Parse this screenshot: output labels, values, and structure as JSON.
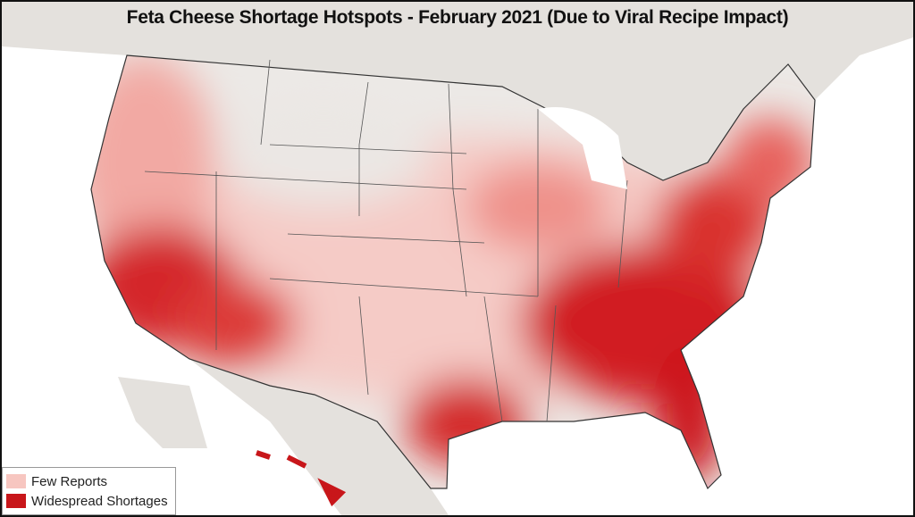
{
  "title": "Feta Cheese Shortage Hotspots - February 2021 (Due to Viral Recipe Impact)",
  "legend": {
    "items": [
      {
        "label": "Few Reports",
        "color": "#f7c6c0"
      },
      {
        "label": "Widespread Shortages",
        "color": "#c8161a"
      }
    ]
  }
}
